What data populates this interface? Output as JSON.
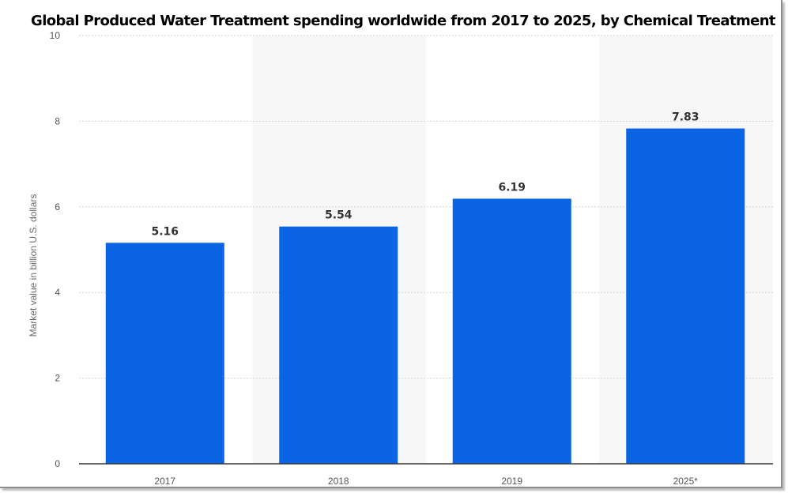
{
  "chart_data": {
    "type": "bar",
    "title": "Global Produced Water Treatment  spending worldwide from 2017 to 2025, by Chemical Treatment",
    "ylabel": "Market value in billion U.S. dollars",
    "xlabel": "",
    "categories": [
      "2017",
      "2018",
      "2019",
      "2025*"
    ],
    "values": [
      5.16,
      5.54,
      6.19,
      7.83
    ],
    "value_labels": [
      "5.16",
      "5.54",
      "6.19",
      "7.83"
    ],
    "ylim": [
      0,
      10
    ],
    "yticks": [
      "0",
      "2",
      "4",
      "6",
      "8",
      "10"
    ],
    "grid": true,
    "legend": "none",
    "colors": {
      "bar": "#0a64e4",
      "band": "#f7f7f7",
      "grid": "#d2d2d2",
      "axis": "#333333"
    }
  }
}
